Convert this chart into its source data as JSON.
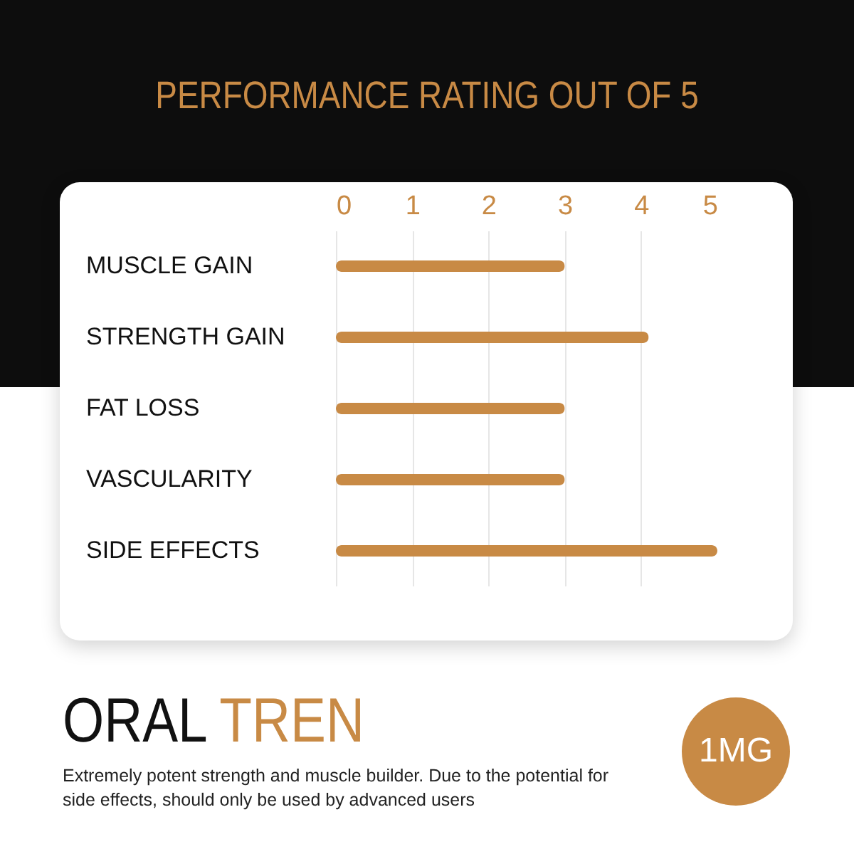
{
  "chart_data": {
    "type": "bar",
    "orientation": "horizontal",
    "title": "PERFORMANCE RATING OUT OF 5",
    "categories": [
      "MUSCLE GAIN",
      "STRENGTH GAIN",
      "FAT LOSS",
      "VASCULARITY",
      "SIDE EFFECTS"
    ],
    "values": [
      3,
      4.1,
      3,
      3,
      5
    ],
    "color": "#c88a45",
    "xlim": [
      0,
      5
    ],
    "xticks": [
      0,
      1,
      2,
      3,
      4,
      5
    ],
    "grid": "x",
    "annotations": [
      "ORAL TREN",
      "Extremely potent strength and muscle builder. Due to the potential for side effects, should only be used by advanced users",
      "1MG"
    ]
  }
}
